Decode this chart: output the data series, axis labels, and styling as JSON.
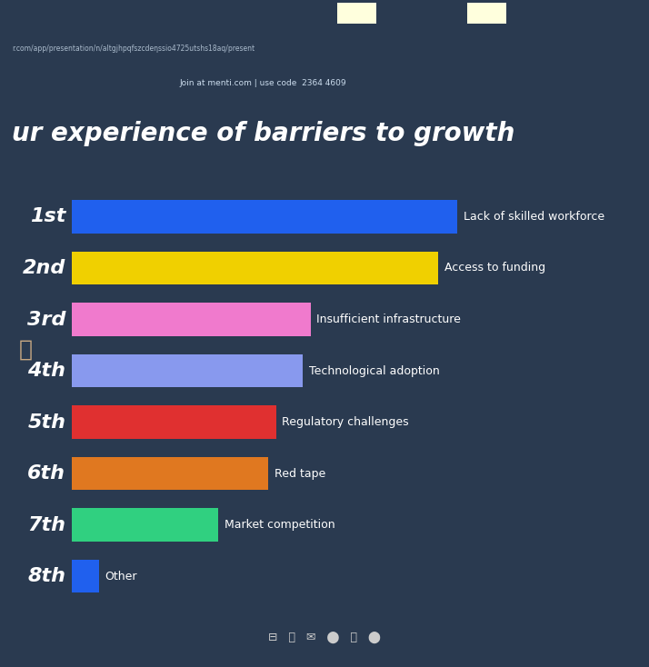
{
  "background_color": "#0d1b35",
  "screen_color": "#0a1628",
  "text_color": "#ffffff",
  "title_line1": "ur experience of barriers to growth",
  "url_text": "r.com/app/presentation/n/altgjhpqfszcdeηssio4725utshs18aq/present",
  "menti_text": "Join at menti.com | use code  2364 4609",
  "categories": [
    "1st",
    "2nd",
    "3rd",
    "4th",
    "5th",
    "6th",
    "7th",
    "8th"
  ],
  "labels": [
    "Lack of skilled workforce",
    "Access to funding",
    "Insufficient infrastructure",
    "Technological adoption",
    "Regulatory challenges",
    "Red tape",
    "Market competition",
    "Other"
  ],
  "values": [
    100,
    95,
    62,
    60,
    53,
    51,
    38,
    7
  ],
  "bar_colors": [
    "#2060ee",
    "#f0d000",
    "#f07acd",
    "#8899ee",
    "#e03030",
    "#e07820",
    "#30d080",
    "#2060ee"
  ],
  "title_fontsize": 20,
  "label_fontsize": 9,
  "rank_fontsize": 16,
  "figsize": [
    7.14,
    7.34
  ],
  "dpi": 100
}
